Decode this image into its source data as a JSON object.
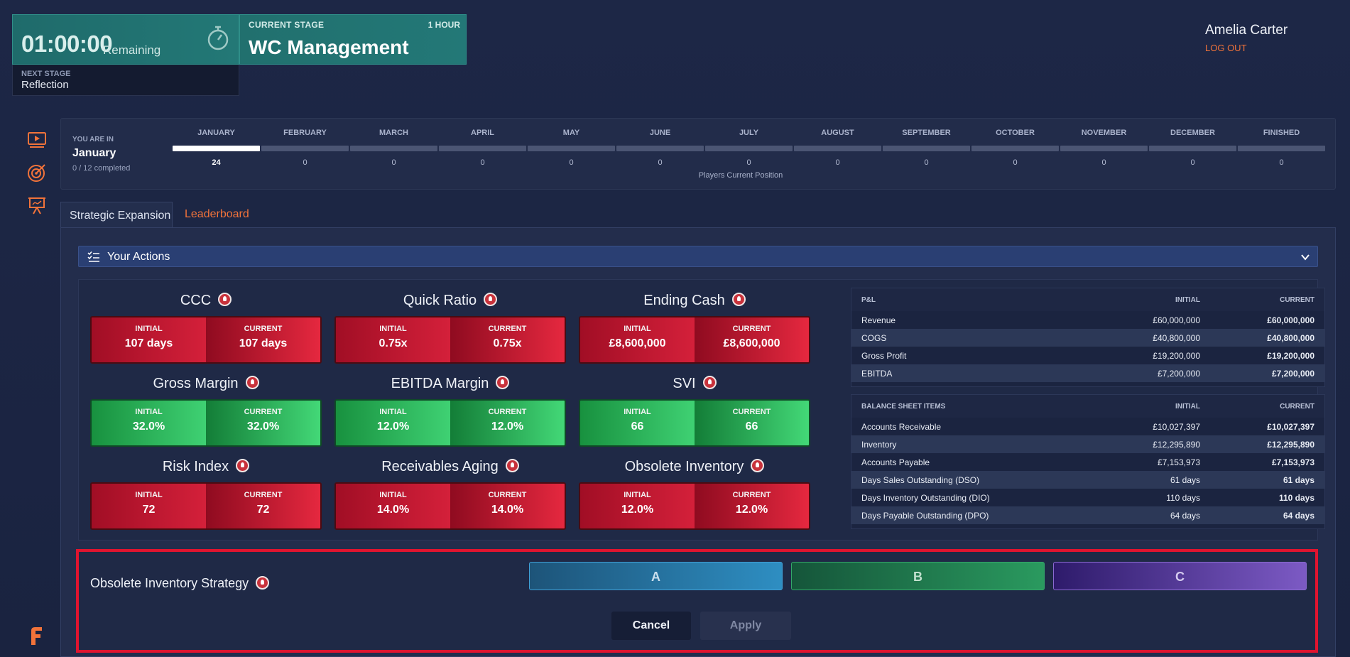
{
  "timer": {
    "time": "01:00:00",
    "remaining_label": "Remaining"
  },
  "stage": {
    "caption": "CURRENT STAGE",
    "duration": "1 HOUR",
    "name": "WC Management"
  },
  "next_stage": {
    "caption": "NEXT STAGE",
    "name": "Reflection"
  },
  "user": {
    "name": "Amelia Carter",
    "logout": "LOG OUT"
  },
  "sidebar": {
    "icons": [
      "video-play-icon",
      "target-icon",
      "presentation-icon"
    ]
  },
  "progress": {
    "you_are_in_label": "YOU ARE IN",
    "current_month": "January",
    "completed": "0 / 12 completed",
    "players_label": "Players Current Position",
    "months": [
      {
        "name": "JANUARY",
        "count": "24",
        "active": true
      },
      {
        "name": "FEBRUARY",
        "count": "0"
      },
      {
        "name": "MARCH",
        "count": "0"
      },
      {
        "name": "APRIL",
        "count": "0"
      },
      {
        "name": "MAY",
        "count": "0"
      },
      {
        "name": "JUNE",
        "count": "0"
      },
      {
        "name": "JULY",
        "count": "0"
      },
      {
        "name": "AUGUST",
        "count": "0"
      },
      {
        "name": "SEPTEMBER",
        "count": "0"
      },
      {
        "name": "OCTOBER",
        "count": "0"
      },
      {
        "name": "NOVEMBER",
        "count": "0"
      },
      {
        "name": "DECEMBER",
        "count": "0"
      },
      {
        "name": "FINISHED",
        "count": "0"
      }
    ]
  },
  "tabs": {
    "active": "Strategic Expansion",
    "inactive": "Leaderboard"
  },
  "actions": {
    "label": "Your Actions"
  },
  "kpi_labels": {
    "initial": "INITIAL",
    "current": "CURRENT"
  },
  "kpis": [
    {
      "title": "CCC",
      "initial": "107 days",
      "current": "107 days",
      "status": "red"
    },
    {
      "title": "Quick Ratio",
      "initial": "0.75x",
      "current": "0.75x",
      "status": "red"
    },
    {
      "title": "Ending Cash",
      "initial": "£8,600,000",
      "current": "£8,600,000",
      "status": "red"
    },
    {
      "title": "Gross Margin",
      "initial": "32.0%",
      "current": "32.0%",
      "status": "green"
    },
    {
      "title": "EBITDA Margin",
      "initial": "12.0%",
      "current": "12.0%",
      "status": "green"
    },
    {
      "title": "SVI",
      "initial": "66",
      "current": "66",
      "status": "green"
    },
    {
      "title": "Risk Index",
      "initial": "72",
      "current": "72",
      "status": "red"
    },
    {
      "title": "Receivables Aging",
      "initial": "14.0%",
      "current": "14.0%",
      "status": "red"
    },
    {
      "title": "Obsolete Inventory",
      "initial": "12.0%",
      "current": "12.0%",
      "status": "red"
    }
  ],
  "pnl": {
    "header": [
      "P&L",
      "INITIAL",
      "CURRENT"
    ],
    "rows": [
      [
        "Revenue",
        "£60,000,000",
        "£60,000,000"
      ],
      [
        "COGS",
        "£40,800,000",
        "£40,800,000"
      ],
      [
        "Gross Profit",
        "£19,200,000",
        "£19,200,000"
      ],
      [
        "EBITDA",
        "£7,200,000",
        "£7,200,000"
      ]
    ]
  },
  "balance": {
    "header": [
      "BALANCE SHEET ITEMS",
      "INITIAL",
      "CURRENT"
    ],
    "rows": [
      [
        "Accounts Receivable",
        "£10,027,397",
        "£10,027,397"
      ],
      [
        "Inventory",
        "£12,295,890",
        "£12,295,890"
      ],
      [
        "Accounts Payable",
        "£7,153,973",
        "£7,153,973"
      ],
      [
        "Days Sales Outstanding (DSO)",
        "61 days",
        "61 days"
      ],
      [
        "Days Inventory Outstanding (DIO)",
        "110 days",
        "110 days"
      ],
      [
        "Days Payable Outstanding (DPO)",
        "64 days",
        "64 days"
      ]
    ]
  },
  "strategy": {
    "label": "Obsolete Inventory Strategy",
    "options": [
      "A",
      "B",
      "C"
    ],
    "cancel": "Cancel",
    "apply": "Apply"
  },
  "colors": {
    "accent": "#f2733a",
    "highlight": "#e0142f",
    "bad": "#d4203a",
    "good": "#3fd173"
  }
}
